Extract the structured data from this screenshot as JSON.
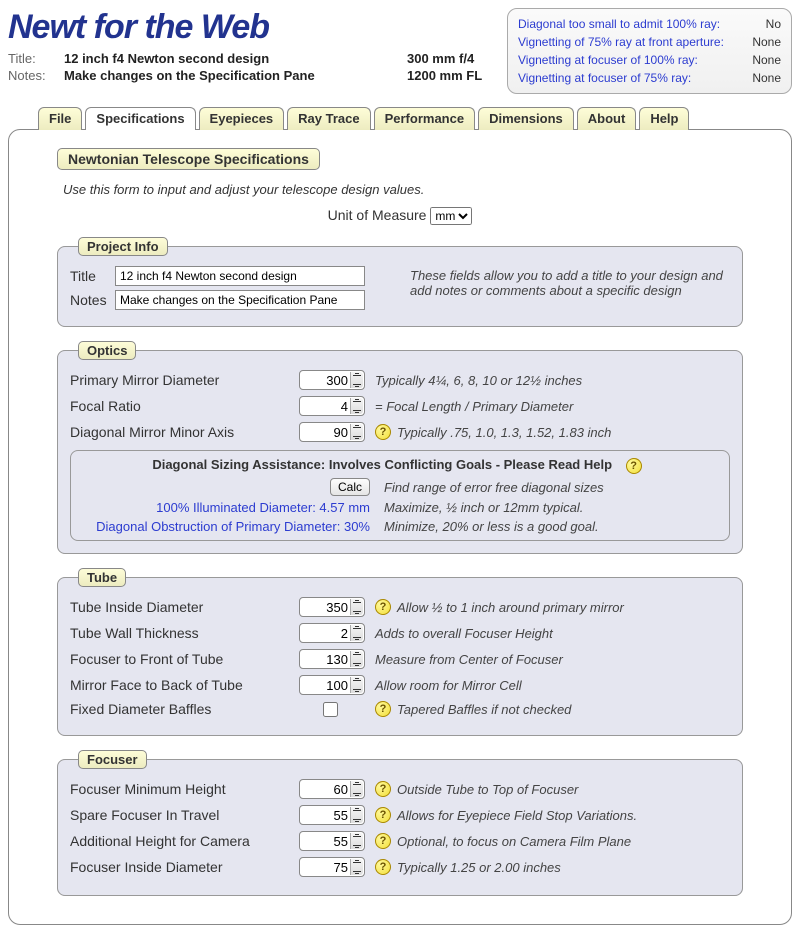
{
  "app": {
    "title": "Newt for the Web"
  },
  "header": {
    "title_label": "Title:",
    "title_value": "12 inch f4 Newton second design",
    "notes_label": "Notes:",
    "notes_value": "Make changes on the Specification Pane",
    "spec1": "300 mm f/4",
    "spec2": "1200 mm FL"
  },
  "status": [
    {
      "label": "Diagonal too small to admit 100% ray:",
      "value": "No"
    },
    {
      "label": "Vignetting of 75% ray at front aperture:",
      "value": "None"
    },
    {
      "label": "Vignetting at focuser of 100% ray:",
      "value": "None"
    },
    {
      "label": "Vignetting at focuser of   75% ray:",
      "value": "None"
    }
  ],
  "tabs": [
    "File",
    "Specifications",
    "Eyepieces",
    "Ray Trace",
    "Performance",
    "Dimensions",
    "About",
    "Help"
  ],
  "activeTab": 1,
  "panel": {
    "legend": "Newtonian Telescope Specifications",
    "instruction": "Use this form to input and adjust your telescope design values.",
    "unit_label": "Unit of Measure",
    "unit_value": "mm"
  },
  "project": {
    "legend": "Project Info",
    "title_label": "Title",
    "title_value": "12 inch f4 Newton second design",
    "notes_label": "Notes",
    "notes_value": "Make changes on the Specification Pane",
    "desc": "These fields allow you to add a title to your design and add notes or comments about a specific design"
  },
  "optics": {
    "legend": "Optics",
    "rows": [
      {
        "label": "Primary Mirror Diameter",
        "value": "300",
        "help": false,
        "hint": "Typically 4¼, 6, 8, 10 or 12½ inches"
      },
      {
        "label": "Focal Ratio",
        "value": "4",
        "help": false,
        "hint": "= Focal Length / Primary Diameter"
      },
      {
        "label": "Diagonal Mirror Minor Axis",
        "value": "90",
        "help": true,
        "hint": "Typically .75, 1.0, 1.3, 1.52, 1.83 inch"
      }
    ],
    "diag": {
      "title": "Diagonal Sizing Assistance: Involves Conflicting Goals - Please Read Help",
      "calc": "Calc",
      "calc_hint": "Find range of error free diagonal sizes",
      "illum_label": "100% Illuminated Diameter: 4.57 mm",
      "illum_hint": "Maximize, ½ inch or 12mm typical.",
      "obstr_label": "Diagonal Obstruction of Primary Diameter: 30%",
      "obstr_hint": "Minimize, 20% or less is a good goal."
    }
  },
  "tube": {
    "legend": "Tube",
    "rows": [
      {
        "label": "Tube Inside Diameter",
        "value": "350",
        "help": true,
        "hint": "Allow ½ to 1 inch around primary mirror"
      },
      {
        "label": "Tube Wall Thickness",
        "value": "2",
        "help": false,
        "hint": "Adds to overall Focuser Height"
      },
      {
        "label": "Focuser to Front of Tube",
        "value": "130",
        "help": false,
        "hint": "Measure from Center of Focuser"
      },
      {
        "label": "Mirror Face to Back of Tube",
        "value": "100",
        "help": false,
        "hint": "Allow room for Mirror Cell"
      }
    ],
    "baffles": {
      "label": "Fixed Diameter Baffles",
      "help": true,
      "hint": "Tapered Baffles if not checked"
    }
  },
  "focuser": {
    "legend": "Focuser",
    "rows": [
      {
        "label": "Focuser Minimum Height",
        "value": "60",
        "help": true,
        "hint": "Outside Tube to Top of Focuser"
      },
      {
        "label": "Spare Focuser In Travel",
        "value": "55",
        "help": true,
        "hint": "Allows for Eyepiece Field Stop Variations."
      },
      {
        "label": "Additional Height for Camera",
        "value": "55",
        "help": true,
        "hint": "Optional, to focus on Camera Film Plane"
      },
      {
        "label": "Focuser Inside Diameter",
        "value": "75",
        "help": true,
        "hint": "Typically 1.25 or 2.00 inches"
      }
    ]
  }
}
